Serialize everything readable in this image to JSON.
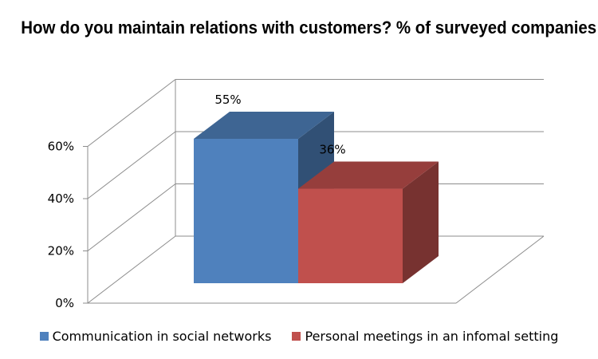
{
  "chart_data": {
    "type": "bar",
    "title": "How do you maintain relations with customers? % of surveyed companies",
    "xlabel": "",
    "ylabel": "",
    "ylim": [
      0,
      60
    ],
    "yticks": [
      "0%",
      "20%",
      "40%",
      "60%"
    ],
    "grid": true,
    "legend_position": "bottom",
    "style": "3d",
    "series": [
      {
        "name": "Communication in social networks",
        "value": 55,
        "label": "55%",
        "color": "#4F81BD"
      },
      {
        "name": "Personal meetings in an infomal setting",
        "value": 36,
        "label": "36%",
        "color": "#C0504D"
      }
    ]
  }
}
